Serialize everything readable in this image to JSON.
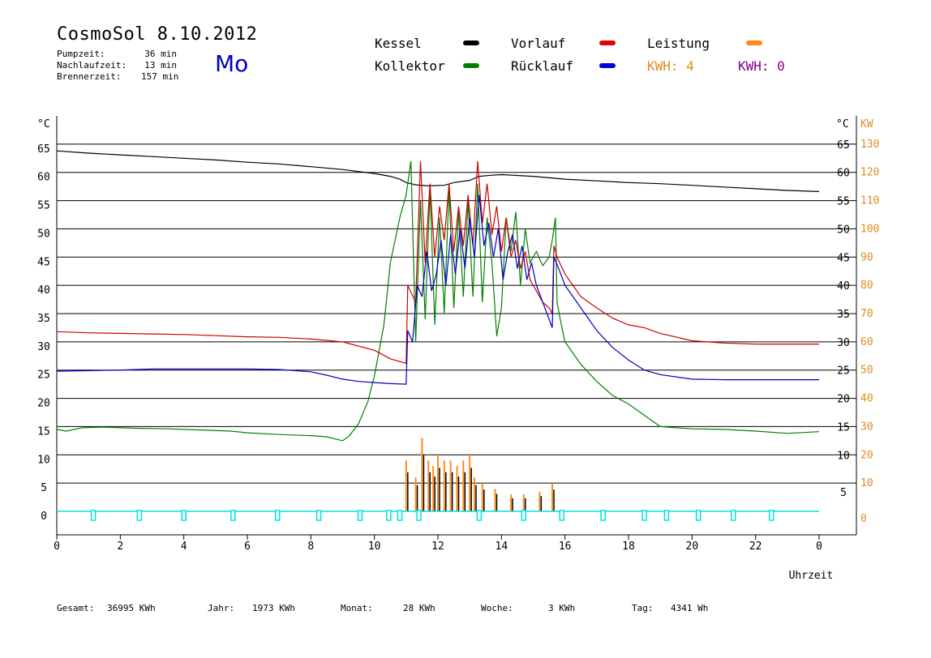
{
  "header": {
    "title": "CosmoSol 8.10.2012",
    "weekday": "Mo",
    "stats": [
      {
        "label": "Pumpzeit:",
        "value": "36 min"
      },
      {
        "label": "Nachlaufzeit:",
        "value": "13 min"
      },
      {
        "label": "Brennerzeit:",
        "value": "157 min"
      }
    ]
  },
  "legend": {
    "kessel": "Kessel",
    "kollektor": "Kollektor",
    "vorlauf": "Vorlauf",
    "ruecklauf": "Rücklauf",
    "leistung": "Leistung",
    "kwh1": "KWH: 4",
    "kwh2": "KWH: 0"
  },
  "colors": {
    "kessel": "#000000",
    "kollektor": "#008000",
    "vorlauf": "#cc0000",
    "ruecklauf": "#0000bb",
    "leistung": "#ff8c1a",
    "kwh2": "#800080",
    "pump": "#00e0e0"
  },
  "footer": {
    "gesamt_label": "Gesamt:",
    "gesamt_value": "36995 KWh",
    "jahr_label": "Jahr:",
    "jahr_value": "1973 KWh",
    "monat_label": "Monat:",
    "monat_value": "28 KWh",
    "woche_label": "Woche:",
    "woche_value": "3 KWh",
    "tag_label": "Tag:",
    "tag_value": "4341 Wh"
  },
  "chart_data": {
    "type": "line",
    "xlabel": "Uhrzeit",
    "ylabel_left": "°C",
    "ylabel_right": "KW",
    "xlim": [
      0,
      24
    ],
    "ylim": [
      0,
      70
    ],
    "x_ticks": [
      "0",
      "2",
      "4",
      "6",
      "8",
      "10",
      "12",
      "14",
      "16",
      "18",
      "20",
      "22",
      "0"
    ],
    "y_ticks_left": [
      "65",
      "60",
      "55",
      "50",
      "45",
      "40",
      "35",
      "30",
      "25",
      "20",
      "15",
      "10",
      "5",
      "0"
    ],
    "y_ticks_right_c": [
      "65",
      "60",
      "55",
      "50",
      "45",
      "40",
      "35",
      "30",
      "25",
      "20",
      "15",
      "10",
      "5"
    ],
    "y_ticks_right_kw": [
      "130",
      "120",
      "110",
      "100",
      "90",
      "80",
      "70",
      "60",
      "50",
      "40",
      "30",
      "20",
      "10",
      "0"
    ],
    "grid": true,
    "series": [
      {
        "name": "Kessel",
        "color": "#000000",
        "x": [
          0,
          1,
          2,
          3,
          4,
          5,
          6,
          7,
          8,
          9,
          10,
          10.5,
          10.8,
          11,
          11.3,
          11.7,
          12.2,
          12.5,
          13,
          13.3,
          13.7,
          14,
          15,
          16,
          17,
          18,
          19,
          20,
          21,
          22,
          23,
          24
        ],
        "y": [
          63.8,
          63.4,
          63.1,
          62.8,
          62.5,
          62.2,
          61.8,
          61.5,
          61,
          60.5,
          59.8,
          59.3,
          58.8,
          58.2,
          57.8,
          57.6,
          57.7,
          58.2,
          58.6,
          59.3,
          59.5,
          59.6,
          59.3,
          58.8,
          58.5,
          58.2,
          58,
          57.7,
          57.4,
          57.1,
          56.8,
          56.6
        ]
      },
      {
        "name": "Kollektor",
        "color": "#008000",
        "x": [
          0,
          0.3,
          0.8,
          1.5,
          2.5,
          3.5,
          4.5,
          5.5,
          6,
          7,
          8,
          8.5,
          9,
          9.2,
          9.5,
          9.8,
          10,
          10.3,
          10.5,
          10.8,
          11,
          11.15,
          11.3,
          11.45,
          11.6,
          11.75,
          11.9,
          12.05,
          12.2,
          12.35,
          12.5,
          12.65,
          12.8,
          12.95,
          13.1,
          13.25,
          13.4,
          13.55,
          13.7,
          13.85,
          14,
          14.15,
          14.3,
          14.45,
          14.6,
          14.75,
          14.9,
          15.1,
          15.3,
          15.5,
          15.6,
          15.7,
          15.75,
          15.85,
          16,
          16.5,
          17,
          17.5,
          18,
          18.5,
          19,
          20,
          21,
          22,
          23,
          24
        ],
        "y": [
          14.5,
          14.2,
          14.8,
          14.9,
          14.7,
          14.6,
          14.4,
          14.2,
          13.9,
          13.6,
          13.4,
          13.2,
          12.5,
          13.3,
          15.5,
          19.5,
          24,
          33,
          44,
          52,
          56,
          62,
          30,
          55,
          34,
          57,
          33,
          52,
          35,
          57,
          36,
          53,
          38,
          55,
          38,
          58,
          37,
          52,
          44,
          31,
          36,
          52,
          46,
          53,
          40,
          50,
          44,
          46,
          43.5,
          45,
          48,
          52,
          37,
          34,
          30,
          26,
          23,
          20.5,
          19,
          17,
          15,
          14.6,
          14.5,
          14.2,
          13.8,
          14.1
        ]
      },
      {
        "name": "Vorlauf",
        "color": "#cc0000",
        "x": [
          0,
          1,
          2,
          3,
          4,
          5,
          6,
          7,
          8,
          9,
          10,
          10.5,
          11,
          11.05,
          11.3,
          11.45,
          11.6,
          11.75,
          11.9,
          12.05,
          12.2,
          12.35,
          12.5,
          12.65,
          12.8,
          12.95,
          13.1,
          13.25,
          13.4,
          13.55,
          13.7,
          13.85,
          14,
          14.15,
          14.3,
          14.45,
          14.6,
          14.75,
          14.9,
          15.1,
          15.3,
          15.5,
          15.6,
          15.65,
          15.75,
          16,
          16.5,
          17,
          17.5,
          18,
          18.5,
          19,
          20,
          21,
          22,
          23,
          24
        ],
        "y": [
          31.8,
          31.6,
          31.5,
          31.4,
          31.3,
          31.1,
          30.9,
          30.8,
          30.5,
          30,
          28.5,
          27,
          26.2,
          40,
          37,
          62,
          44,
          58,
          45,
          54,
          48,
          58,
          46,
          54,
          47,
          56,
          47,
          62,
          51,
          58,
          49,
          54,
          46,
          52,
          45,
          48,
          43,
          46,
          41,
          39,
          37,
          36,
          35,
          47,
          45,
          42,
          38,
          36,
          34.2,
          33,
          32.5,
          31.5,
          30.2,
          29.8,
          29.6,
          29.6,
          29.6
        ]
      },
      {
        "name": "Rücklauf",
        "color": "#0000bb",
        "x": [
          0,
          1,
          2,
          3,
          4,
          5,
          6,
          7,
          8,
          8.5,
          9,
          9.5,
          10,
          10.5,
          11,
          11.05,
          11.2,
          11.35,
          11.5,
          11.65,
          11.8,
          11.95,
          12.1,
          12.25,
          12.4,
          12.55,
          12.7,
          12.85,
          13,
          13.15,
          13.3,
          13.45,
          13.6,
          13.75,
          13.9,
          14.05,
          14.2,
          14.35,
          14.5,
          14.65,
          14.8,
          14.95,
          15.1,
          15.3,
          15.5,
          15.6,
          15.65,
          15.8,
          16,
          16.5,
          17,
          17.5,
          18,
          18.5,
          19,
          20,
          21,
          22,
          23,
          24
        ],
        "y": [
          24.8,
          24.9,
          25,
          25.2,
          25.2,
          25.2,
          25.2,
          25.1,
          24.7,
          24.1,
          23.4,
          23,
          22.8,
          22.6,
          22.5,
          32,
          30,
          40,
          38,
          46,
          39,
          42,
          48,
          40,
          49,
          42,
          50,
          43,
          52,
          45,
          56,
          47,
          51,
          45,
          50,
          41,
          46,
          49,
          43,
          47,
          41,
          44,
          40,
          37,
          34,
          32.5,
          45,
          43,
          40,
          36,
          32,
          29,
          26.8,
          25,
          24.2,
          23.4,
          23.3,
          23.3,
          23.3,
          23.3
        ]
      }
    ],
    "leistung_bars": [
      {
        "x": 11.0,
        "kw": 18
      },
      {
        "x": 11.3,
        "kw": 12
      },
      {
        "x": 11.5,
        "kw": 26
      },
      {
        "x": 11.7,
        "kw": 18
      },
      {
        "x": 11.85,
        "kw": 16
      },
      {
        "x": 12.0,
        "kw": 20
      },
      {
        "x": 12.2,
        "kw": 18
      },
      {
        "x": 12.4,
        "kw": 18
      },
      {
        "x": 12.6,
        "kw": 16
      },
      {
        "x": 12.8,
        "kw": 18
      },
      {
        "x": 13.0,
        "kw": 20
      },
      {
        "x": 13.15,
        "kw": 12
      },
      {
        "x": 13.4,
        "kw": 10
      },
      {
        "x": 13.8,
        "kw": 8
      },
      {
        "x": 14.3,
        "kw": 6
      },
      {
        "x": 14.7,
        "kw": 6
      },
      {
        "x": 15.2,
        "kw": 7
      },
      {
        "x": 15.6,
        "kw": 10
      }
    ],
    "pump_markers": [
      1.15,
      2.6,
      4.0,
      5.55,
      6.95,
      8.25,
      9.55,
      10.45,
      10.8,
      11.4,
      13.3,
      14.7,
      15.9,
      17.2,
      18.5,
      19.2,
      20.2,
      21.3,
      22.5
    ]
  }
}
